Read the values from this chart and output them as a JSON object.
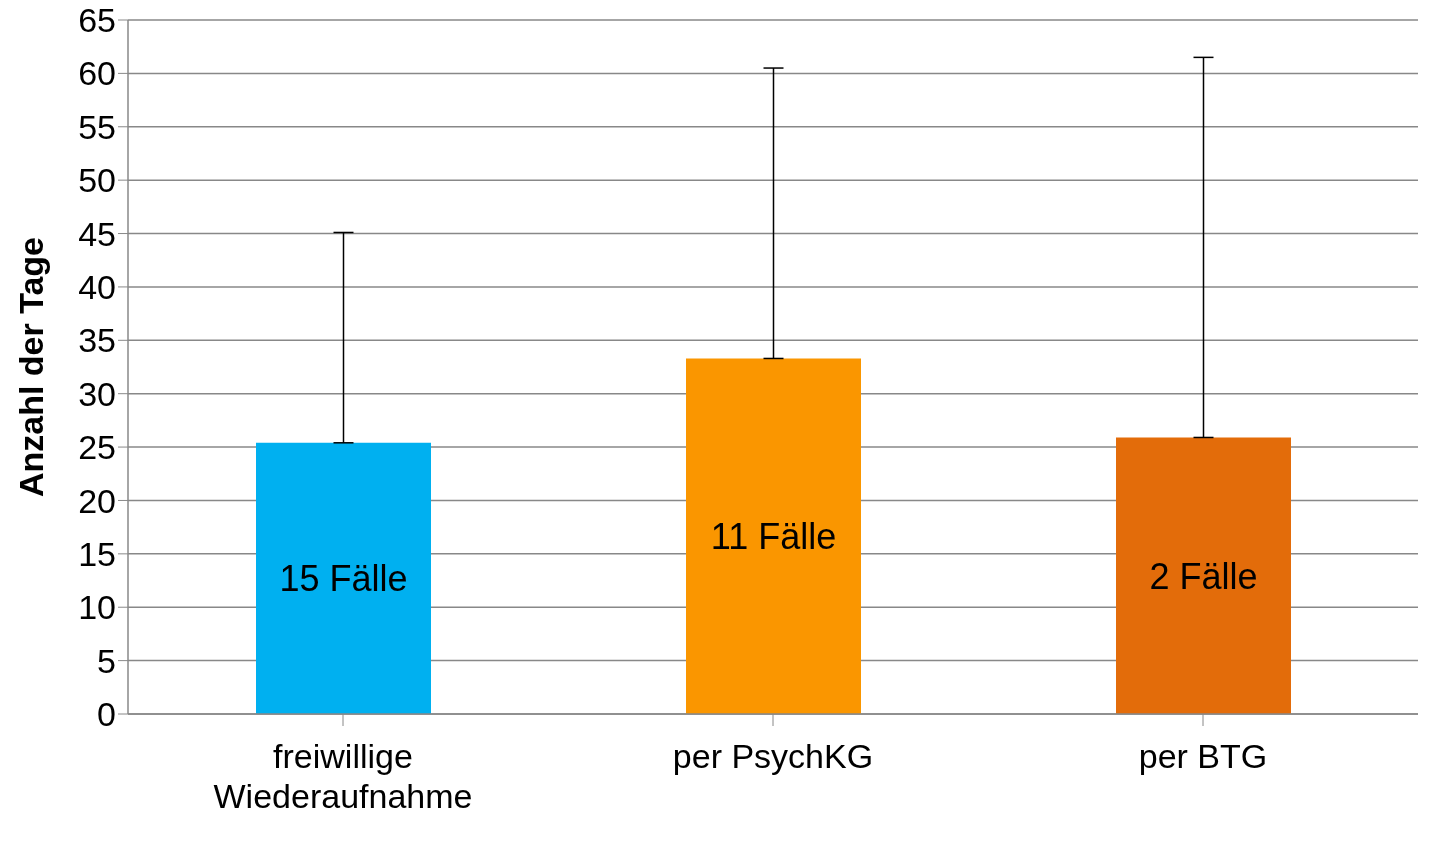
{
  "chart_data": {
    "type": "bar",
    "ylabel": "Anzahl der Tage",
    "categories": [
      "freiwillige Wiederaufnahme",
      "per PsychKG",
      "per BTG"
    ],
    "values": [
      25.4,
      33.3,
      25.9
    ],
    "colors": [
      "#00b0f0",
      "#fa9600",
      "#e36c0a"
    ],
    "errors": [
      [
        25.4,
        45.1
      ],
      [
        33.3,
        60.5
      ],
      [
        25.9,
        61.5
      ]
    ],
    "ylim": [
      0,
      65
    ],
    "yticks": [
      0,
      5,
      10,
      15,
      20,
      25,
      30,
      35,
      40,
      45,
      50,
      55,
      60,
      65
    ],
    "grid": "y",
    "annotations": [
      "15 Fälle",
      "11 Fälle",
      "2 Fälle"
    ]
  }
}
